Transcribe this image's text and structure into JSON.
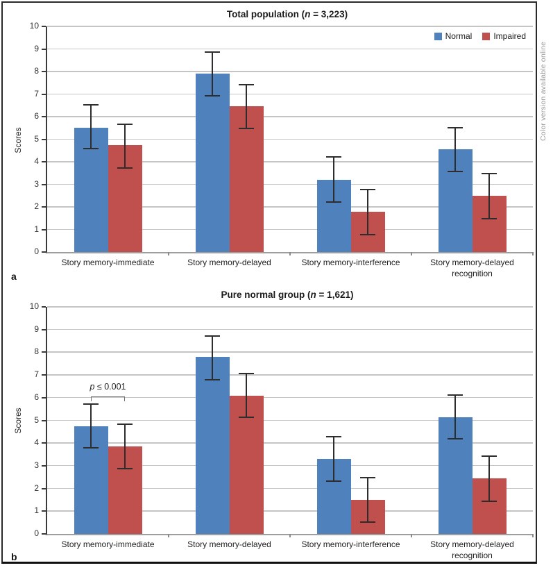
{
  "figure": {
    "side_note": "Color version available online",
    "accent_colors": {
      "normal_blue": "#4f81bd",
      "impaired_red": "#c0504d"
    }
  },
  "chart_data": [
    {
      "type": "bar",
      "panel_label": "a",
      "title": "Total population (n = 3,223)",
      "title_parts": {
        "prefix": "Total population (",
        "n_symbol": "n",
        "suffix": " = 3,223)"
      },
      "xlabel": "",
      "ylabel": "Scores",
      "ylim": [
        0,
        10
      ],
      "ytick_step": 1,
      "grid": true,
      "legend_visible": true,
      "legend_position": "top-right",
      "categories": [
        "Story memory-immediate",
        "Story memory-delayed",
        "Story memory-interference",
        "Story memory-delayed recognition"
      ],
      "series": [
        {
          "name": "Normal",
          "color": "#4f81bd",
          "values": [
            5.5,
            7.9,
            3.2,
            4.55
          ],
          "error_low": [
            4.55,
            6.9,
            2.2,
            3.55
          ],
          "error_high": [
            6.55,
            8.9,
            4.25,
            5.55
          ]
        },
        {
          "name": "Impaired",
          "color": "#c0504d",
          "values": [
            4.75,
            6.45,
            1.8,
            2.5
          ],
          "error_low": [
            3.7,
            5.45,
            0.75,
            1.45
          ],
          "error_high": [
            5.7,
            7.45,
            2.8,
            3.5
          ]
        }
      ]
    },
    {
      "type": "bar",
      "panel_label": "b",
      "title": "Pure normal group (n = 1,621)",
      "title_parts": {
        "prefix": "Pure normal group (",
        "n_symbol": "n",
        "suffix": " = 1,621)"
      },
      "xlabel": "",
      "ylabel": "Scores",
      "ylim": [
        0,
        10
      ],
      "ytick_step": 1,
      "grid": true,
      "legend_visible": false,
      "categories": [
        "Story memory-immediate",
        "Story memory-delayed",
        "Story memory-interference",
        "Story memory-delayed recognition"
      ],
      "series": [
        {
          "name": "Normal",
          "color": "#4f81bd",
          "values": [
            4.75,
            7.8,
            3.3,
            5.15
          ],
          "error_low": [
            3.75,
            6.75,
            2.3,
            4.15
          ],
          "error_high": [
            5.75,
            8.75,
            4.3,
            6.15
          ]
        },
        {
          "name": "Impaired",
          "color": "#c0504d",
          "values": [
            3.85,
            6.1,
            1.5,
            2.45
          ],
          "error_low": [
            2.85,
            5.1,
            0.5,
            1.4
          ],
          "error_high": [
            4.85,
            7.1,
            2.5,
            3.45
          ]
        }
      ],
      "annotation": {
        "p_symbol": "p",
        "comparison": " ≤ 0.001",
        "category_index": 0,
        "y_value": 6.05
      }
    }
  ]
}
